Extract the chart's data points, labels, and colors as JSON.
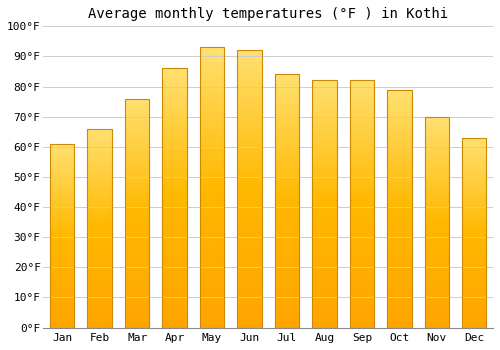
{
  "title": "Average monthly temperatures (°F ) in Kothi",
  "months": [
    "Jan",
    "Feb",
    "Mar",
    "Apr",
    "May",
    "Jun",
    "Jul",
    "Aug",
    "Sep",
    "Oct",
    "Nov",
    "Dec"
  ],
  "values": [
    61,
    66,
    76,
    86,
    93,
    92,
    84,
    82,
    82,
    79,
    70,
    63
  ],
  "bar_color_top": "#FFD966",
  "bar_color_bottom": "#FFA500",
  "bar_edge_color": "#CC8800",
  "background_color": "#FFFFFF",
  "grid_color": "#CCCCCC",
  "ylim": [
    0,
    100
  ],
  "yticks": [
    0,
    10,
    20,
    30,
    40,
    50,
    60,
    70,
    80,
    90,
    100
  ],
  "ytick_labels": [
    "0°F",
    "10°F",
    "20°F",
    "30°F",
    "40°F",
    "50°F",
    "60°F",
    "70°F",
    "80°F",
    "90°F",
    "100°F"
  ],
  "title_fontsize": 10,
  "tick_fontsize": 8,
  "font_family": "monospace",
  "bar_width": 0.65
}
